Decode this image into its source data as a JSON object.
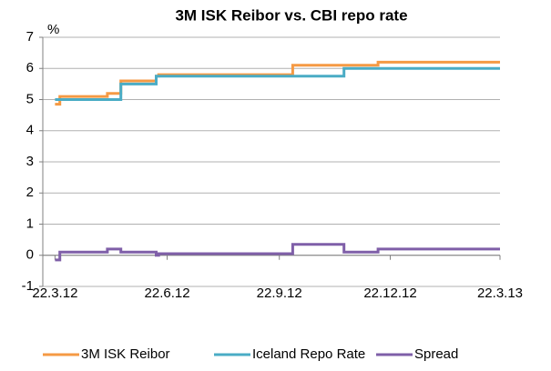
{
  "chart_data": {
    "type": "line",
    "title": "3M ISK Reibor vs. CBI repo rate",
    "y_label": "%",
    "x": [
      "2012-03-22",
      "2012-03-26",
      "2012-03-26",
      "2012-05-04",
      "2012-05-04",
      "2012-05-15",
      "2012-05-15",
      "2012-06-13",
      "2012-06-13",
      "2012-06-15",
      "2012-06-15",
      "2012-10-03",
      "2012-10-03",
      "2012-11-14",
      "2012-11-14",
      "2012-12-12",
      "2012-12-12",
      "2013-03-22"
    ],
    "series": [
      {
        "name": "3M ISK Reibor",
        "color": "#f59a44",
        "values": [
          4.85,
          4.85,
          5.1,
          5.1,
          5.2,
          5.2,
          5.6,
          5.6,
          5.75,
          5.75,
          5.8,
          5.8,
          6.1,
          6.1,
          6.1,
          6.1,
          6.2,
          6.2
        ]
      },
      {
        "name": "Iceland Repo Rate",
        "color": "#4aacc5",
        "values": [
          5,
          5,
          5,
          5,
          5,
          5,
          5.5,
          5.5,
          5.75,
          5.75,
          5.75,
          5.75,
          5.75,
          5.75,
          6,
          6,
          6,
          6
        ]
      },
      {
        "name": "Spread",
        "color": "#7f5fa8",
        "values": [
          -0.15,
          -0.15,
          0.1,
          0.1,
          0.2,
          0.2,
          0.1,
          0.1,
          0,
          0,
          0.05,
          0.05,
          0.35,
          0.35,
          0.1,
          0.1,
          0.2,
          0.2
        ]
      }
    ],
    "xlim": [
      "2012-03-12",
      "2013-03-22"
    ],
    "xticks": [
      {
        "value": "2012-03-22",
        "label": "22.3.12"
      },
      {
        "value": "2012-06-22",
        "label": "22.6.12"
      },
      {
        "value": "2012-09-22",
        "label": "22.9.12"
      },
      {
        "value": "2012-12-22",
        "label": "22.12.12"
      },
      {
        "value": "2013-03-22",
        "label": "22.3.13"
      }
    ],
    "ylim": [
      -1,
      7
    ],
    "yticks": [
      -1,
      0,
      1,
      2,
      3,
      4,
      5,
      6,
      7
    ],
    "grid": true,
    "legend": "bottom"
  }
}
